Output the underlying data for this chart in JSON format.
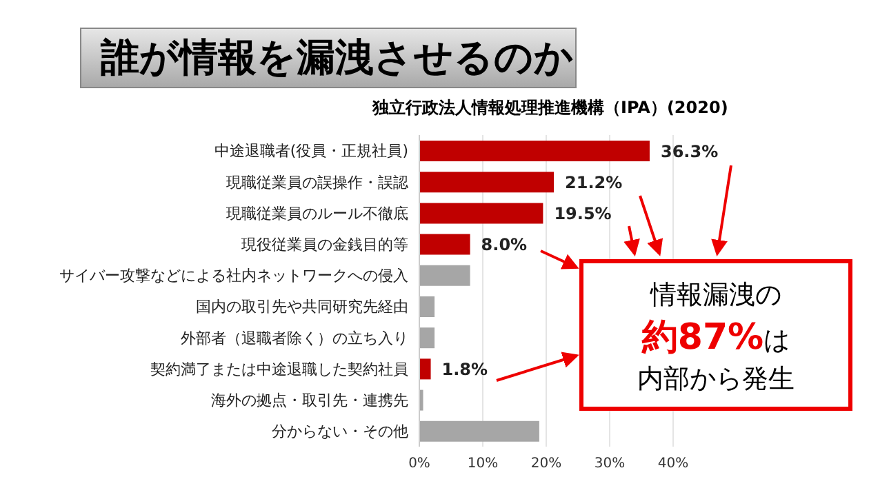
{
  "chart_data": {
    "type": "bar",
    "orientation": "horizontal",
    "title": "誰が情報を漏洩させるのか",
    "subtitle": "独立行政法人情報処理推進機構（IPA）(2020)",
    "categories": [
      "中途退職者(役員・正規社員)",
      "現職従業員の誤操作・誤認",
      "現職従業員のルール不徹底",
      "現役従業員の金銭目的等",
      "サイバー攻撃などによる社内ネットワークへの侵入",
      "国内の取引先や共同研究先経由",
      "外部者（退職者除く）の立ち入り",
      "契約満了または中途退職した契約社員",
      "海外の拠点・取引先・連携先",
      "分からない・その他"
    ],
    "values": [
      36.3,
      21.2,
      19.5,
      8.0,
      8.0,
      2.4,
      2.4,
      1.8,
      0.6,
      18.9
    ],
    "colors": [
      "#c00000",
      "#c00000",
      "#c00000",
      "#c00000",
      "#a6a6a6",
      "#a6a6a6",
      "#a6a6a6",
      "#c00000",
      "#a6a6a6",
      "#a6a6a6"
    ],
    "value_labels": [
      "36.3%",
      "21.2%",
      "19.5%",
      "8.0%",
      null,
      null,
      null,
      "1.8%",
      null,
      null
    ],
    "xlim": [
      0,
      40
    ],
    "xticks": [
      {
        "value": 0,
        "label": "0%"
      },
      {
        "value": 10,
        "label": "10%"
      },
      {
        "value": 20,
        "label": "20%"
      },
      {
        "value": 30,
        "label": "30%"
      },
      {
        "value": 40,
        "label": "40%"
      }
    ],
    "grid": "x",
    "legend": false,
    "annotations": [
      "情報漏洩の",
      "約87%",
      "は",
      "内部から発生"
    ]
  }
}
